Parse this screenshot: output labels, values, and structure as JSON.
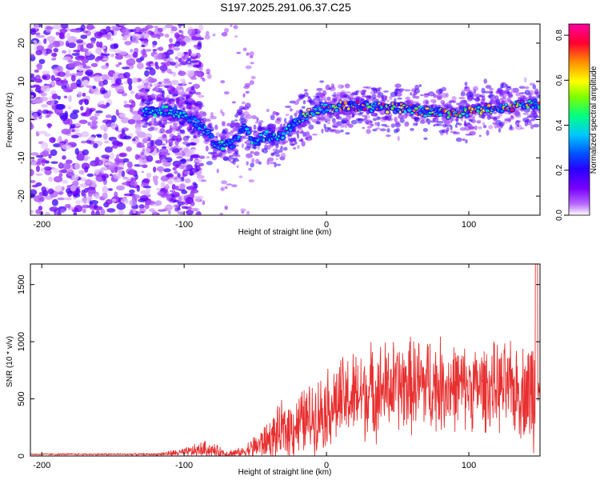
{
  "title": "S197.2025.291.06.37.C25",
  "chart_data": [
    {
      "type": "heatmap",
      "name": "spectrogram",
      "xlabel": "Height of straight line (km)",
      "ylabel": "Frequency (Hz)",
      "xlim": [
        -208,
        150
      ],
      "ylim": [
        -25,
        25
      ],
      "xticks": [
        -200,
        -100,
        0,
        100
      ],
      "yticks": [
        -20,
        -10,
        0,
        10,
        20
      ],
      "colorbar": {
        "label": "Normalized spectral amplitude",
        "range": [
          0,
          0.85
        ],
        "ticks": [
          "0.0",
          "0.2",
          "0.4",
          "0.6",
          "0.8"
        ],
        "colormap": [
          "#ffffff",
          "#b566ff",
          "#7a00ff",
          "#2a00ff",
          "#0050ff",
          "#00c8ff",
          "#00ff80",
          "#80ff00",
          "#ffff00",
          "#ff9000",
          "#ff0030",
          "#ff00a0"
        ]
      },
      "ridge": {
        "description_points": [
          [
            -125,
            2
          ],
          [
            -110,
            2.5
          ],
          [
            -95,
            0
          ],
          [
            -85,
            -3
          ],
          [
            -75,
            -7
          ],
          [
            -65,
            -6
          ],
          [
            -58,
            -2
          ],
          [
            -50,
            -6
          ],
          [
            -42,
            -4
          ],
          [
            -35,
            -5
          ],
          [
            -25,
            -2
          ],
          [
            -15,
            1
          ],
          [
            -5,
            3
          ],
          [
            0,
            3
          ],
          [
            10,
            3.5
          ],
          [
            25,
            3.5
          ],
          [
            40,
            3
          ],
          [
            55,
            3
          ],
          [
            70,
            2
          ],
          [
            85,
            1.5
          ],
          [
            100,
            2
          ],
          [
            115,
            3
          ],
          [
            130,
            3.5
          ],
          [
            148,
            4
          ]
        ]
      }
    },
    {
      "type": "line",
      "name": "snr",
      "xlabel": "Height of straight line (km)",
      "ylabel": "SNR (10 * v/v)",
      "xlim": [
        -208,
        150
      ],
      "ylim": [
        0,
        1680
      ],
      "xticks": [
        -200,
        -100,
        0,
        100
      ],
      "yticks": [
        0,
        500,
        1000,
        1500
      ],
      "color": "#e83030",
      "envelope": {
        "x": [
          -208,
          -120,
          -100,
          -85,
          -70,
          -60,
          -50,
          -40,
          -30,
          -20,
          -10,
          0,
          10,
          20,
          30,
          40,
          50,
          60,
          70,
          80,
          90,
          100,
          110,
          120,
          130,
          140,
          148,
          150
        ],
        "base": [
          15,
          15,
          30,
          60,
          20,
          30,
          80,
          150,
          220,
          280,
          340,
          420,
          480,
          520,
          560,
          590,
          610,
          620,
          630,
          620,
          610,
          600,
          600,
          600,
          580,
          560,
          580,
          600
        ],
        "spread": [
          8,
          10,
          40,
          80,
          40,
          40,
          120,
          180,
          280,
          300,
          330,
          360,
          400,
          420,
          440,
          430,
          430,
          440,
          460,
          430,
          400,
          380,
          390,
          400,
          420,
          430,
          700,
          500
        ]
      },
      "peak": {
        "x": 148,
        "y": 1680
      }
    }
  ]
}
